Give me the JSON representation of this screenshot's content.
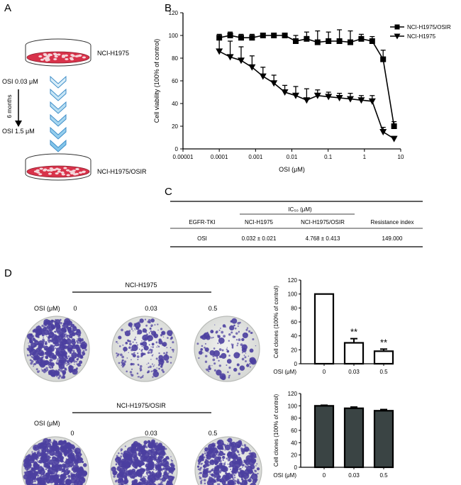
{
  "panels": {
    "a": "A",
    "b": "B",
    "c": "C",
    "d": "D"
  },
  "panel_a": {
    "dish_top_label": "NCI-H1975",
    "dish_bottom_label": "NCI-H1975/OSIR",
    "osi_start": "OSI 0.03 μM",
    "osi_end": "OSI 1.5 μM",
    "duration": "6 months"
  },
  "panel_c": {
    "header_group": "IC₅₀ (μM)",
    "columns": [
      "EGFR-TKI",
      "NCI-H1975",
      "NCI-H1975/OSIR",
      "Resistance index"
    ],
    "row": [
      "OSI",
      "0.032 ± 0.021",
      "4.768 ± 0.413",
      "149.000"
    ]
  },
  "panel_d": {
    "group1_label": "NCI-H1975",
    "group2_label": "NCI-H1975/OSIR",
    "osi_row_label": "OSI (μM)",
    "doses": [
      "0",
      "0.03",
      "0.5"
    ],
    "bar_xlabel": "OSI (μM)",
    "significance": [
      "**",
      "**"
    ]
  },
  "chart_data": [
    {
      "type": "line",
      "panel": "B",
      "xlabel": "OSI (μM)",
      "ylabel": "Cell viability (100% of control)",
      "xscale": "log",
      "xlim": [
        1e-05,
        10
      ],
      "ylim": [
        0,
        120
      ],
      "xticks": [
        "0.00001",
        "0.0001",
        "0.001",
        "0.01",
        "0.1",
        "1",
        "10"
      ],
      "yticks": [
        "0",
        "20",
        "40",
        "60",
        "80",
        "100",
        "120"
      ],
      "legend_position": "top-right",
      "series": [
        {
          "name": "NCI-H1975/OSIR",
          "marker": "square",
          "x": [
            0.0001,
            0.0002,
            0.0004,
            0.0008,
            0.0016,
            0.0032,
            0.0064,
            0.0128,
            0.0256,
            0.0512,
            0.1024,
            0.2048,
            0.4096,
            0.8192,
            1.6384,
            3.2768,
            6.5536
          ],
          "y": [
            98,
            100,
            98,
            98,
            100,
            100,
            100,
            95,
            97,
            94,
            95,
            95,
            94,
            97,
            95,
            79,
            20
          ],
          "err": [
            3,
            3,
            3,
            3,
            2,
            2,
            2,
            5,
            6,
            10,
            8,
            10,
            10,
            4,
            4,
            8,
            4
          ]
        },
        {
          "name": "NCI-H1975",
          "marker": "triangle-down",
          "x": [
            0.0001,
            0.0002,
            0.0004,
            0.0008,
            0.0016,
            0.0032,
            0.0064,
            0.0128,
            0.0256,
            0.0512,
            0.1024,
            0.2048,
            0.4096,
            0.8192,
            1.6384,
            3.2768,
            6.5536
          ],
          "y": [
            86,
            81,
            78,
            72,
            64,
            58,
            50,
            47,
            43,
            47,
            46,
            45,
            44,
            43,
            42,
            15,
            9
          ],
          "err": [
            12,
            14,
            12,
            10,
            8,
            7,
            6,
            8,
            10,
            5,
            4,
            4,
            5,
            4,
            5,
            4,
            2
          ]
        }
      ]
    },
    {
      "type": "bar",
      "panel": "D-top",
      "xlabel": "OSI (μM)",
      "ylabel": "Cell clones (100% of control)",
      "categories": [
        "0",
        "0.03",
        "0.5"
      ],
      "values": [
        100,
        30,
        18
      ],
      "err": [
        0,
        6,
        3
      ],
      "ylim": [
        0,
        120
      ],
      "yticks": [
        "0",
        "20",
        "40",
        "60",
        "80",
        "100",
        "120"
      ],
      "fill": "#ffffff"
    },
    {
      "type": "bar",
      "panel": "D-bottom",
      "xlabel": "OSI (μM)",
      "ylabel": "Cell clones (100% of control)",
      "categories": [
        "0",
        "0.03",
        "0.5"
      ],
      "values": [
        100,
        96,
        92
      ],
      "err": [
        1,
        2,
        2
      ],
      "ylim": [
        0,
        120
      ],
      "yticks": [
        "0",
        "20",
        "40",
        "60",
        "80",
        "100",
        "120"
      ],
      "fill": "#3a4444"
    }
  ],
  "colors": {
    "dish_medium": "#d8324a",
    "arrow_fill": "#aad4ee",
    "arrow_stroke": "#3f8ec8",
    "plate_bg": "#e9eae8",
    "colony": "#4b3fa0",
    "dark_bar": "#3a4444"
  }
}
